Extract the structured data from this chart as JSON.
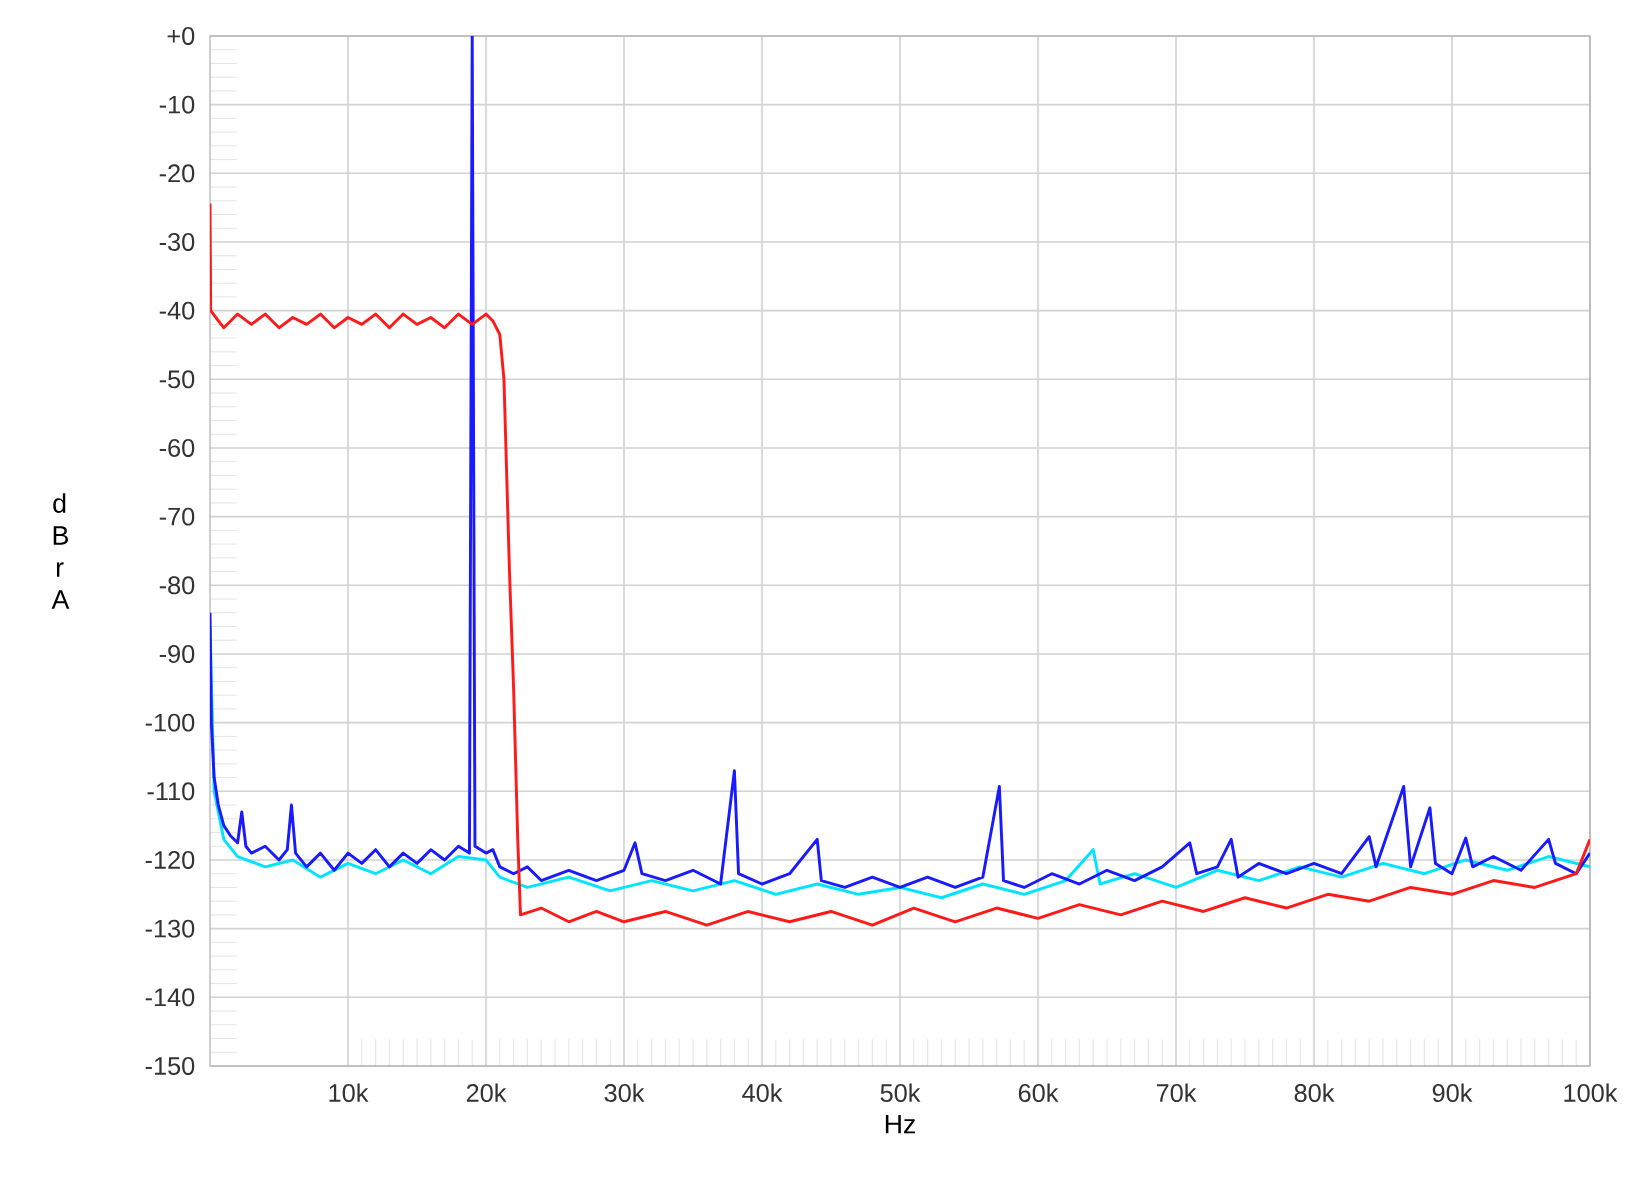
{
  "chart_data": {
    "type": "line",
    "xlabel": "Hz",
    "ylabel": "d B r A",
    "xlim": [
      0,
      100000
    ],
    "ylim": [
      -150,
      0
    ],
    "xticks": [
      {
        "value": 10000,
        "label": "10k"
      },
      {
        "value": 20000,
        "label": "20k"
      },
      {
        "value": 30000,
        "label": "30k"
      },
      {
        "value": 40000,
        "label": "40k"
      },
      {
        "value": 50000,
        "label": "50k"
      },
      {
        "value": 60000,
        "label": "60k"
      },
      {
        "value": 70000,
        "label": "70k"
      },
      {
        "value": 80000,
        "label": "80k"
      },
      {
        "value": 90000,
        "label": "90k"
      },
      {
        "value": 100000,
        "label": "100k"
      }
    ],
    "yticks": [
      {
        "value": 0,
        "label": "+0"
      },
      -10,
      -20,
      -30,
      -40,
      -50,
      -60,
      -70,
      -80,
      -90,
      -100,
      -110,
      -120,
      -130,
      -140,
      -150
    ],
    "grid": true,
    "line_style": "solid",
    "series": [
      {
        "color": "#00e5ff",
        "x": [
          0,
          300,
          1000,
          2000,
          4000,
          6000,
          8000,
          10000,
          12000,
          14000,
          16000,
          18000,
          20000,
          21000,
          23000,
          26000,
          29000,
          32000,
          35000,
          38000,
          41000,
          44000,
          47000,
          50000,
          53000,
          56000,
          59000,
          62000,
          64000,
          64500,
          67000,
          70000,
          73000,
          76000,
          79000,
          82000,
          85000,
          88000,
          91000,
          94000,
          97000,
          100000
        ],
        "values": [
          -86,
          -110,
          -117,
          -119.5,
          -121,
          -120,
          -122.5,
          -120.5,
          -122,
          -120,
          -122,
          -119.5,
          -120,
          -122.5,
          -124,
          -122.5,
          -124.5,
          -123,
          -124.5,
          -123,
          -125,
          -123.5,
          -125,
          -124,
          -125.5,
          -123.5,
          -125,
          -123,
          -118.5,
          -123.5,
          -122,
          -124,
          -121.5,
          -123,
          -121,
          -122.5,
          -120.5,
          -122,
          -120,
          -121.5,
          -119.5,
          -121
        ]
      },
      {
        "color": "#1a1aff",
        "x": [
          0,
          100,
          300,
          600,
          1000,
          1500,
          2000,
          2300,
          2600,
          3000,
          4000,
          5000,
          5600,
          5900,
          6200,
          7000,
          8000,
          9000,
          10000,
          11000,
          12000,
          13000,
          14000,
          15000,
          16000,
          17000,
          18000,
          18800,
          19000,
          19200,
          20000,
          20500,
          21000,
          22000,
          23000,
          24000,
          26000,
          28000,
          30000,
          30800,
          31300,
          33000,
          35000,
          37000,
          38000,
          38300,
          40000,
          42000,
          44000,
          44300,
          46000,
          48000,
          50000,
          52000,
          54000,
          56000,
          57200,
          57500,
          59000,
          61000,
          63000,
          65000,
          67000,
          69000,
          71000,
          71500,
          73000,
          74000,
          74500,
          76000,
          78000,
          80000,
          82000,
          84000,
          84500,
          86500,
          87000,
          88400,
          88800,
          90000,
          91000,
          91500,
          93000,
          95000,
          97000,
          97500,
          99000,
          100000
        ],
        "values": [
          -84,
          -100,
          -108,
          -112,
          -115,
          -116.5,
          -117.5,
          -113,
          -118,
          -119,
          -118,
          -120,
          -118.5,
          -112,
          -119,
          -121,
          -119,
          -121.5,
          -119,
          -120.5,
          -118.5,
          -121,
          -119,
          -120.5,
          -118.5,
          -120,
          -118,
          -119,
          0,
          -118,
          -119,
          -118.5,
          -121,
          -122,
          -121,
          -123,
          -121.5,
          -123,
          -121.5,
          -117.5,
          -122,
          -123,
          -121.5,
          -123.5,
          -107,
          -122,
          -123.5,
          -122,
          -117,
          -123,
          -124,
          -122.5,
          -124,
          -122.5,
          -124,
          -122.5,
          -109.3,
          -123,
          -124,
          -122,
          -123.5,
          -121.5,
          -123,
          -121,
          -117.5,
          -122,
          -121,
          -117,
          -122.5,
          -120.5,
          -122,
          -120.5,
          -122,
          -116.6,
          -121,
          -109.3,
          -121,
          -112.4,
          -120.5,
          -122,
          -116.8,
          -121,
          -119.5,
          -121.5,
          -117,
          -120.5,
          -122,
          -119
        ]
      },
      {
        "color": "#ff1a1a",
        "x": [
          0,
          50,
          1000,
          2000,
          3000,
          4000,
          5000,
          6000,
          7000,
          8000,
          9000,
          10000,
          11000,
          12000,
          13000,
          14000,
          15000,
          16000,
          17000,
          18000,
          19000,
          20000,
          20500,
          21000,
          21300,
          21700,
          22000,
          22300,
          22500,
          24000,
          26000,
          28000,
          30000,
          33000,
          36000,
          39000,
          42000,
          45000,
          48000,
          51000,
          54000,
          57000,
          60000,
          63000,
          66000,
          69000,
          72000,
          75000,
          78000,
          81000,
          84000,
          87000,
          90000,
          93000,
          96000,
          99000,
          100000
        ],
        "values": [
          -24.4,
          -40,
          -42.5,
          -40.5,
          -42,
          -40.5,
          -42.5,
          -41,
          -42,
          -40.5,
          -42.5,
          -41,
          -42,
          -40.5,
          -42.5,
          -40.5,
          -42,
          -41,
          -42.5,
          -40.5,
          -42,
          -40.5,
          -41.5,
          -43.5,
          -50,
          -78,
          -95,
          -117,
          -128,
          -127,
          -129,
          -127.5,
          -129,
          -127.5,
          -129.5,
          -127.5,
          -129,
          -127.5,
          -129.5,
          -127,
          -129,
          -127,
          -128.5,
          -126.5,
          -128,
          -126,
          -127.5,
          -125.5,
          -127,
          -125,
          -126,
          -124,
          -125,
          -123,
          -124,
          -122,
          -117
        ]
      }
    ]
  }
}
